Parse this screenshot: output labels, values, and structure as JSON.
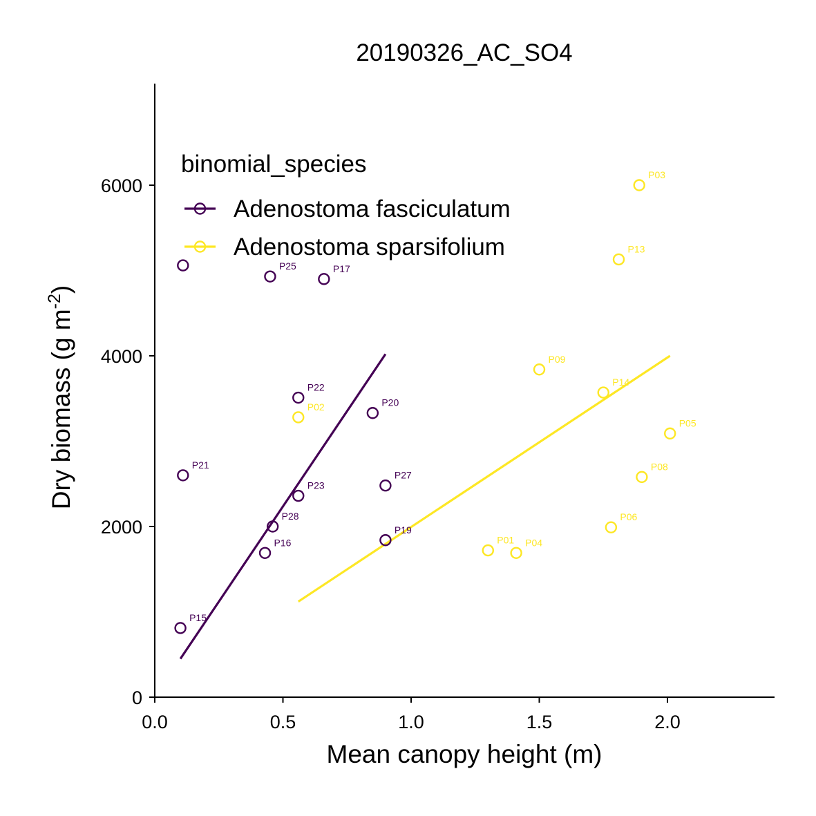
{
  "chart_data": {
    "type": "scatter",
    "title": "20190326_AC_SO4",
    "xlabel": "Mean canopy height (m)",
    "ylabel_main": "Dry biomass (g m",
    "ylabel_sup": "-2",
    "ylabel_close": ")",
    "xlim": [
      0,
      2.4
    ],
    "ylim": [
      0,
      7200
    ],
    "x_ticks": [
      0.0,
      0.5,
      1.0,
      1.5,
      2.0
    ],
    "x_tick_labels": [
      "0.0",
      "0.5",
      "1.0",
      "1.5",
      "2.0"
    ],
    "y_ticks": [
      0,
      2000,
      4000,
      6000
    ],
    "y_tick_labels": [
      "0",
      "2000",
      "4000",
      "6000"
    ],
    "grid": false,
    "legend": {
      "title": "binomial_species",
      "position": "top-left"
    },
    "series": [
      {
        "name": "Adenostoma fasciculatum",
        "color": "#440154",
        "points": [
          {
            "x": 0.11,
            "y": 5060,
            "label": ""
          },
          {
            "x": 0.45,
            "y": 4930,
            "label": "P25"
          },
          {
            "x": 0.66,
            "y": 4900,
            "label": "P17"
          },
          {
            "x": 0.56,
            "y": 3510,
            "label": "P22"
          },
          {
            "x": 0.85,
            "y": 3330,
            "label": "P20"
          },
          {
            "x": 0.11,
            "y": 2600,
            "label": "P21"
          },
          {
            "x": 0.9,
            "y": 2480,
            "label": "P27"
          },
          {
            "x": 0.56,
            "y": 2360,
            "label": "P23"
          },
          {
            "x": 0.46,
            "y": 2000,
            "label": "P28"
          },
          {
            "x": 0.9,
            "y": 1840,
            "label": "P19"
          },
          {
            "x": 0.43,
            "y": 1690,
            "label": "P16"
          },
          {
            "x": 0.1,
            "y": 810,
            "label": "P15"
          }
        ],
        "fit": {
          "x": [
            0.1,
            0.9
          ],
          "y": [
            450,
            4020
          ]
        }
      },
      {
        "name": "Adenostoma sparsifolium",
        "color": "#FDE725",
        "points": [
          {
            "x": 1.89,
            "y": 6000,
            "label": "P03"
          },
          {
            "x": 1.81,
            "y": 5130,
            "label": "P13"
          },
          {
            "x": 1.5,
            "y": 3840,
            "label": "P09"
          },
          {
            "x": 1.75,
            "y": 3570,
            "label": "P14"
          },
          {
            "x": 0.56,
            "y": 3280,
            "label": "P02"
          },
          {
            "x": 2.01,
            "y": 3090,
            "label": "P05"
          },
          {
            "x": 1.9,
            "y": 2580,
            "label": "P08"
          },
          {
            "x": 1.78,
            "y": 1990,
            "label": "P06"
          },
          {
            "x": 1.3,
            "y": 1720,
            "label": "P01"
          },
          {
            "x": 1.41,
            "y": 1690,
            "label": "P04"
          }
        ],
        "fit": {
          "x": [
            0.56,
            2.01
          ],
          "y": [
            1120,
            4000
          ]
        }
      }
    ]
  }
}
